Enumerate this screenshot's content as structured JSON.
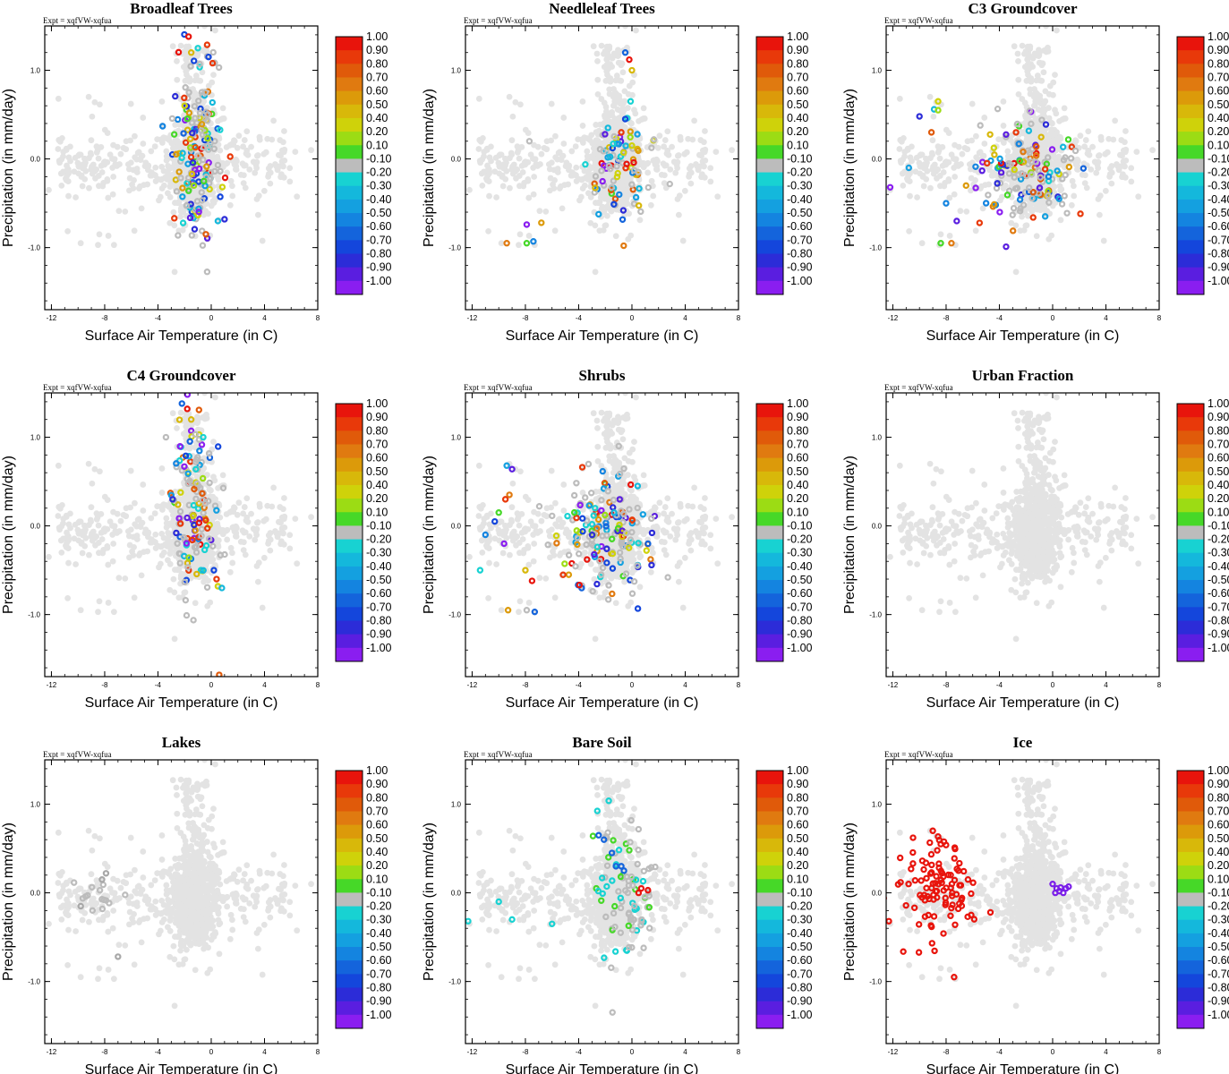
{
  "figure": {
    "expt_label": "Expt = xqfVW-xqfua",
    "xlabel": "Surface Air Temperature (in C)",
    "ylabel": "Precipitation (in mm/day)"
  },
  "colorbar": {
    "labels": [
      "1.00",
      "0.90",
      "0.80",
      "0.70",
      "0.60",
      "0.50",
      "0.40",
      "0.20",
      "0.10",
      "-0.10",
      "-0.20",
      "-0.30",
      "-0.40",
      "-0.50",
      "-0.60",
      "-0.70",
      "-0.80",
      "-0.90",
      "-1.00"
    ],
    "colors": [
      "#e8140c",
      "#e8390a",
      "#e05a0a",
      "#e07a10",
      "#dc9a0a",
      "#d8b80a",
      "#cfd20a",
      "#9cdc14",
      "#46d828",
      "#bcbcbc",
      "#18d2d2",
      "#14b8dc",
      "#14a0e0",
      "#1484e0",
      "#1464dc",
      "#1446dc",
      "#2c2cd8",
      "#5a1ee0",
      "#8a1ef0"
    ],
    "grey": "#bcbcbc",
    "light_grey": "#e3e3e3"
  },
  "chart_data": [
    {
      "type": "scatter",
      "title": "Broadleaf Trees",
      "xticks": [
        "-12",
        "-8",
        "-4",
        "0",
        "4",
        "8"
      ],
      "yticks": [
        "1.0",
        "0.0",
        "-1.0"
      ],
      "xlim": [
        -12.5,
        8
      ],
      "ylim": [
        -1.7,
        1.5
      ],
      "highlight": {
        "x": -1.2,
        "y": 0.1,
        "sx": 0.9,
        "sy": 0.55,
        "n": 180,
        "extra_x": [
          -1.7,
          -1.5,
          -1.0,
          -0.2,
          0.1,
          -2.0,
          0.5,
          1.0,
          -0.4,
          -1.3
        ],
        "extra_y": [
          1.38,
          1.2,
          1.25,
          1.15,
          1.08,
          0.6,
          -0.7,
          -0.68,
          -0.85,
          -0.3
        ]
      }
    },
    {
      "type": "scatter",
      "title": "Needleleaf Trees",
      "xticks": [
        "-12",
        "-8",
        "-4",
        "0",
        "4",
        "8"
      ],
      "yticks": [
        "1.0",
        "0.0",
        "-1.0"
      ],
      "xlim": [
        -12.5,
        8
      ],
      "ylim": [
        -1.7,
        1.5
      ],
      "highlight": {
        "x": -1.0,
        "y": -0.1,
        "sx": 1.3,
        "sy": 0.25,
        "n": 90,
        "extra_x": [
          -9.4,
          -7.9,
          -7.4,
          -7.9,
          -6.8,
          -7.7,
          -0.5,
          -0.2,
          0.0,
          -0.1,
          -0.5,
          -0.8,
          0.0,
          -1.8
        ],
        "extra_y": [
          -0.95,
          -0.95,
          -0.93,
          -0.74,
          -0.72,
          0.2,
          1.2,
          1.12,
          1.0,
          0.65,
          0.45,
          0.3,
          0.15,
          0.35
        ]
      }
    },
    {
      "type": "scatter",
      "title": "C3 Groundcover",
      "xticks": [
        "-12",
        "-8",
        "-4",
        "0",
        "4",
        "8"
      ],
      "yticks": [
        "1.0",
        "0.0",
        "-1.0"
      ],
      "xlim": [
        -12.5,
        8
      ],
      "ylim": [
        -1.7,
        1.5
      ],
      "highlight": {
        "x": -2.2,
        "y": -0.15,
        "sx": 1.8,
        "sy": 0.28,
        "n": 150,
        "extra_x": [
          -8.6,
          -8.9,
          -10.0,
          -9.1,
          -8.6,
          -10.8,
          -7.2,
          -7.6,
          -8.4,
          -8.0,
          -12.2,
          -6.5
        ],
        "extra_y": [
          0.65,
          0.56,
          0.48,
          0.3,
          0.55,
          -0.1,
          -0.7,
          -0.95,
          -0.95,
          -0.5,
          -0.32,
          -0.3
        ]
      }
    },
    {
      "type": "scatter",
      "title": "C4 Groundcover",
      "xticks": [
        "-12",
        "-8",
        "-4",
        "0",
        "4",
        "8"
      ],
      "yticks": [
        "1.0",
        "0.0",
        "-1.0"
      ],
      "xlim": [
        -12.5,
        8
      ],
      "ylim": [
        -1.7,
        1.5
      ],
      "highlight": {
        "x": -1.2,
        "y": 0.25,
        "sx": 0.9,
        "sy": 0.5,
        "n": 140,
        "extra_x": [
          -3.4,
          -2.2,
          -1.8,
          -1.5,
          -0.6,
          0.2,
          0.4,
          0.5,
          0.8,
          -2.9,
          0.6
        ],
        "extra_y": [
          1.0,
          1.38,
          1.32,
          1.2,
          1.0,
          -0.5,
          -0.6,
          -0.68,
          -0.7,
          0.3,
          -1.68
        ]
      }
    },
    {
      "type": "scatter",
      "title": "Shrubs",
      "xticks": [
        "-12",
        "-8",
        "-4",
        "0",
        "4",
        "8"
      ],
      "yticks": [
        "1.0",
        "0.0",
        "-1.0"
      ],
      "xlim": [
        -12.5,
        8
      ],
      "ylim": [
        -1.7,
        1.5
      ],
      "highlight": {
        "x": -1.9,
        "y": -0.1,
        "sx": 1.6,
        "sy": 0.35,
        "n": 180,
        "extra_x": [
          -9.4,
          -9.0,
          -9.2,
          -10.0,
          -11.0,
          -9.6,
          -9.3,
          -7.9,
          -7.3,
          -7.5,
          -8.0,
          -11.4,
          -10.3,
          -9.5
        ],
        "extra_y": [
          0.68,
          0.64,
          0.35,
          0.15,
          -0.1,
          -0.2,
          -0.95,
          -0.95,
          -0.97,
          -0.62,
          -0.5,
          -0.5,
          0.05,
          0.3
        ]
      }
    },
    {
      "type": "scatter",
      "title": "Urban Fraction",
      "xticks": [
        "-12",
        "-8",
        "-4",
        "0",
        "4",
        "8"
      ],
      "yticks": [
        "1.0",
        "0.0",
        "-1.0"
      ],
      "xlim": [
        -12.5,
        8
      ],
      "ylim": [
        -1.7,
        1.5
      ],
      "highlight": {
        "x": 0,
        "y": 0,
        "sx": 0,
        "sy": 0,
        "n": 0,
        "extra_x": [],
        "extra_y": []
      }
    },
    {
      "type": "scatter",
      "title": "Lakes",
      "xticks": [
        "-12",
        "-8",
        "-4",
        "0",
        "4",
        "8"
      ],
      "yticks": [
        "1.0",
        "0.0",
        "-1.0"
      ],
      "xlim": [
        -12.5,
        8
      ],
      "ylim": [
        -1.7,
        1.5
      ],
      "highlight": {
        "x": -8.5,
        "y": -0.1,
        "sx": 1.2,
        "sy": 0.12,
        "n": 14,
        "extra_x": [
          -7.9,
          -8.2,
          -9.8,
          -7.0
        ],
        "extra_y": [
          0.22,
          0.15,
          -0.15,
          -0.72
        ]
      }
    },
    {
      "type": "scatter",
      "title": "Bare Soil",
      "xticks": [
        "-12",
        "-8",
        "-4",
        "0",
        "4",
        "8"
      ],
      "yticks": [
        "1.0",
        "0.0",
        "-1.0"
      ],
      "xlim": [
        -12.5,
        8
      ],
      "ylim": [
        -1.7,
        1.5
      ],
      "highlight": {
        "x": -0.6,
        "y": 0.0,
        "sx": 1.2,
        "sy": 0.45,
        "n": 90,
        "extra_x": [
          -2.5,
          -2.1,
          -1.5,
          -1.2,
          -0.8,
          -0.6,
          0.5,
          0.7,
          1.2,
          -12.3,
          -10.0,
          -9.0,
          -6.0
        ],
        "extra_y": [
          0.65,
          0.6,
          0.45,
          0.3,
          0.3,
          0.25,
          0.0,
          0.05,
          0.03,
          -0.32,
          -0.1,
          -0.3,
          -0.35
        ]
      }
    },
    {
      "type": "scatter",
      "title": "Ice",
      "xticks": [
        "-12",
        "-8",
        "-4",
        "0",
        "4",
        "8"
      ],
      "yticks": [
        "1.0",
        "0.0",
        "-1.0"
      ],
      "xlim": [
        -12.5,
        8
      ],
      "ylim": [
        -1.7,
        1.5
      ],
      "highlight": {
        "x": -8.7,
        "y": 0.0,
        "sx": 1.5,
        "sy": 0.3,
        "n": 100,
        "extra_x": [
          0.0,
          0.3,
          0.5,
          0.8,
          1.0,
          1.2,
          0.2,
          0.6,
          -12.3,
          -9.0,
          -8.4,
          -7.4
        ],
        "extra_y": [
          0.1,
          0.05,
          0.02,
          0.0,
          0.05,
          0.07,
          0.0,
          0.06,
          -0.32,
          0.7,
          0.55,
          -0.95
        ]
      }
    }
  ]
}
